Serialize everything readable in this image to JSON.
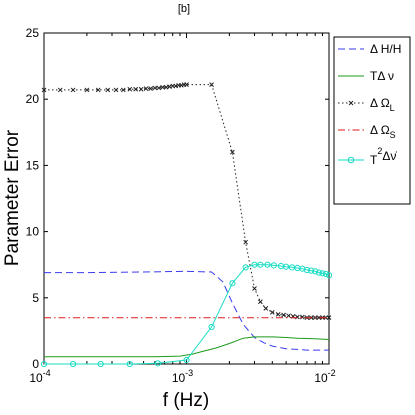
{
  "chart_data": {
    "type": "line",
    "title": "[b]",
    "xlabel": "f (Hz)",
    "ylabel": "Parameter Error",
    "xscale": "log",
    "xlim": [
      0.0001,
      0.01
    ],
    "ylim": [
      0,
      25
    ],
    "grid": false,
    "legend_position": "top-right",
    "x_ticks": [
      {
        "value": 0.0001,
        "base": "10",
        "exp": "-4"
      },
      {
        "value": 0.001,
        "base": "10",
        "exp": "-3"
      },
      {
        "value": 0.01,
        "base": "10",
        "exp": "-2"
      }
    ],
    "y_ticks": [
      0,
      5,
      10,
      15,
      20,
      25
    ],
    "series": [
      {
        "name": "Δ H/H",
        "legend": {
          "main": "Δ H/H",
          "sub": "",
          "sup": "",
          "post": ""
        },
        "color": "#3b3bf0",
        "dash": "7,4",
        "marker": "none",
        "x": [
          0.0001,
          0.0002,
          0.0005,
          0.001,
          0.0015,
          0.0018,
          0.0021,
          0.0025,
          0.003,
          0.0035,
          0.004,
          0.005,
          0.006,
          0.007,
          0.008,
          0.01
        ],
        "y": [
          6.9,
          6.9,
          6.95,
          7.0,
          6.95,
          6.2,
          4.6,
          3.0,
          2.0,
          1.6,
          1.35,
          1.15,
          1.1,
          1.05,
          1.05,
          1.05
        ]
      },
      {
        "name": "TΔ ν",
        "legend": {
          "main": "TΔ ν",
          "sub": "",
          "sup": "",
          "post": ""
        },
        "color": "#1c9a1c",
        "dash": "",
        "marker": "none",
        "x": [
          0.0001,
          0.0003,
          0.0006,
          0.0009,
          0.0011,
          0.0013,
          0.0016,
          0.002,
          0.0025,
          0.003,
          0.004,
          0.005,
          0.006,
          0.008,
          0.01
        ],
        "y": [
          0.55,
          0.55,
          0.55,
          0.6,
          0.75,
          0.95,
          1.2,
          1.55,
          1.95,
          2.05,
          2.05,
          2.0,
          1.95,
          1.9,
          1.85
        ]
      },
      {
        "name": "Δ Ω_L",
        "legend": {
          "main": "Δ Ω",
          "sub": "L",
          "sup": "",
          "post": ""
        },
        "color": "#222222",
        "dash": "1.5,2.5",
        "marker": "x",
        "x": [
          0.0001,
          0.00013,
          0.00016,
          0.0002,
          0.00024,
          0.00028,
          0.00032,
          0.00036,
          0.0004,
          0.00044,
          0.00048,
          0.00052,
          0.00056,
          0.0006,
          0.00064,
          0.00068,
          0.00072,
          0.00076,
          0.0008,
          0.00084,
          0.00088,
          0.00092,
          0.00096,
          0.001,
          0.0015,
          0.0021,
          0.0026,
          0.003,
          0.0033,
          0.0036,
          0.004,
          0.0044,
          0.0048,
          0.0052,
          0.0056,
          0.006,
          0.0065,
          0.007,
          0.0075,
          0.008,
          0.0085,
          0.009,
          0.0095,
          0.01
        ],
        "y": [
          20.7,
          20.7,
          20.7,
          20.7,
          20.7,
          20.7,
          20.7,
          20.7,
          20.75,
          20.75,
          20.75,
          20.8,
          20.8,
          20.85,
          20.85,
          20.9,
          20.9,
          20.95,
          21.0,
          21.0,
          21.05,
          21.05,
          21.1,
          21.1,
          21.1,
          16.0,
          9.2,
          5.7,
          4.7,
          4.2,
          3.9,
          3.75,
          3.7,
          3.65,
          3.6,
          3.55,
          3.55,
          3.5,
          3.5,
          3.5,
          3.5,
          3.5,
          3.5,
          3.5
        ]
      },
      {
        "name": "Δ Ω_S",
        "legend": {
          "main": "Δ Ω",
          "sub": "S",
          "sup": "",
          "post": ""
        },
        "color": "#e01a1a",
        "dash": "7,3,1.5,3",
        "marker": "none",
        "x": [
          0.0001,
          0.01
        ],
        "y": [
          3.5,
          3.5
        ]
      },
      {
        "name": "T²Δν̇",
        "legend": {
          "main": "T",
          "sub": "",
          "sup": "2",
          "post": "Δν̇"
        },
        "color": "#19dcc4",
        "dash": "",
        "marker": "o",
        "x": [
          0.0001,
          0.00016,
          0.00025,
          0.0004,
          0.00063,
          0.001,
          0.0015,
          0.0021,
          0.0026,
          0.003,
          0.0033,
          0.0037,
          0.0041,
          0.0046,
          0.005,
          0.0055,
          0.006,
          0.0065,
          0.007,
          0.0075,
          0.008,
          0.0085,
          0.009,
          0.0095,
          0.01
        ],
        "y": [
          0.0,
          0.0,
          0.0,
          0.0,
          0.05,
          0.3,
          2.8,
          6.1,
          7.3,
          7.5,
          7.5,
          7.5,
          7.45,
          7.4,
          7.35,
          7.3,
          7.25,
          7.2,
          7.1,
          7.05,
          7.0,
          6.9,
          6.85,
          6.8,
          6.7
        ]
      }
    ]
  }
}
